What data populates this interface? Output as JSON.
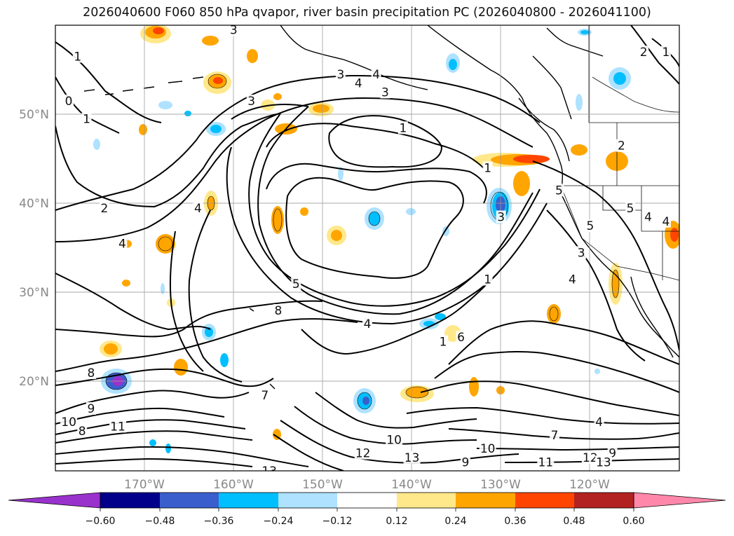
{
  "title": "2026040600 F060 850 hPa qvapor, river basin precipitation PC (2026040800 - 2026041100)",
  "lat_labels": [
    "50°N",
    "40°N",
    "30°N",
    "20°N"
  ],
  "lon_labels": [
    "170°W",
    "160°W",
    "150°W",
    "140°W",
    "130°W",
    "120°W"
  ],
  "colorbar": {
    "ticks": [
      "−0.60",
      "−0.48",
      "−0.36",
      "−0.24",
      "−0.12",
      "0.12",
      "0.24",
      "0.36",
      "0.48",
      "0.60"
    ],
    "colors": [
      "#9932cc",
      "#00008b",
      "#3a5fcd",
      "#00bfff",
      "#aee2ff",
      "#ffffff",
      "#ffe88a",
      "#ffa500",
      "#ff4500",
      "#b22222",
      "#ff88aa"
    ]
  },
  "contour_labels": [
    {
      "text": "1",
      "lat": 56.5,
      "lon": -177.5
    },
    {
      "text": "3",
      "lat": 59.5,
      "lon": -160
    },
    {
      "text": "3",
      "lat": 54.5,
      "lon": -148
    },
    {
      "text": "4",
      "lat": 53.5,
      "lon": -146
    },
    {
      "text": "4",
      "lat": 54.5,
      "lon": -144
    },
    {
      "text": "3",
      "lat": 52.5,
      "lon": -143
    },
    {
      "text": "3",
      "lat": 51.5,
      "lon": -158
    },
    {
      "text": "0",
      "lat": 51.5,
      "lon": -178.5
    },
    {
      "text": "1",
      "lat": 49.5,
      "lon": -176.5
    },
    {
      "text": "1",
      "lat": 48.5,
      "lon": -141
    },
    {
      "text": "2",
      "lat": 57,
      "lon": -114
    },
    {
      "text": "1",
      "lat": 57,
      "lon": -111.5
    },
    {
      "text": "2",
      "lat": 46.5,
      "lon": -116.5
    },
    {
      "text": "1",
      "lat": 44,
      "lon": -131.5
    },
    {
      "text": "2",
      "lat": 39.5,
      "lon": -174.5
    },
    {
      "text": "4",
      "lat": 39.5,
      "lon": -164
    },
    {
      "text": "4",
      "lat": 35.5,
      "lon": -172.5
    },
    {
      "text": "3",
      "lat": 38.5,
      "lon": -130
    },
    {
      "text": "5",
      "lat": 41.5,
      "lon": -123.5
    },
    {
      "text": "5",
      "lat": 39.5,
      "lon": -115.5
    },
    {
      "text": "4",
      "lat": 38.5,
      "lon": -113.5
    },
    {
      "text": "5",
      "lat": 37.5,
      "lon": -120
    },
    {
      "text": "3",
      "lat": 34.5,
      "lon": -121
    },
    {
      "text": "4",
      "lat": 31.5,
      "lon": -122
    },
    {
      "text": "4",
      "lat": 38,
      "lon": -111.5
    },
    {
      "text": "1",
      "lat": 31.5,
      "lon": -131.5
    },
    {
      "text": "5",
      "lat": 31,
      "lon": -153
    },
    {
      "text": "8",
      "lat": 28,
      "lon": -155
    },
    {
      "text": "4",
      "lat": 26.5,
      "lon": -145
    },
    {
      "text": "6",
      "lat": 25,
      "lon": -134.5
    },
    {
      "text": "1",
      "lat": 24.5,
      "lon": -136.5
    },
    {
      "text": "8",
      "lat": 21,
      "lon": -176
    },
    {
      "text": "9",
      "lat": 17,
      "lon": -176
    },
    {
      "text": "10",
      "lat": 15.5,
      "lon": -178.5
    },
    {
      "text": "8",
      "lat": 14.5,
      "lon": -177
    },
    {
      "text": "11",
      "lat": 15,
      "lon": -173
    },
    {
      "text": "7",
      "lat": 18.5,
      "lon": -156.5
    },
    {
      "text": "12",
      "lat": 12,
      "lon": -145.5
    },
    {
      "text": "10",
      "lat": 13.5,
      "lon": -142
    },
    {
      "text": "13",
      "lat": 11.5,
      "lon": -140
    },
    {
      "text": "13",
      "lat": 10,
      "lon": -156
    },
    {
      "text": "10",
      "lat": 12.5,
      "lon": -131.5
    },
    {
      "text": "9",
      "lat": 11,
      "lon": -134
    },
    {
      "text": "11",
      "lat": 11,
      "lon": -125
    },
    {
      "text": "7",
      "lat": 14,
      "lon": -124
    },
    {
      "text": "4",
      "lat": 15.5,
      "lon": -119
    },
    {
      "text": "9",
      "lat": 12,
      "lon": -117.5
    },
    {
      "text": "12",
      "lat": 11.5,
      "lon": -120
    },
    {
      "text": "13",
      "lat": 11,
      "lon": -118.5
    }
  ]
}
